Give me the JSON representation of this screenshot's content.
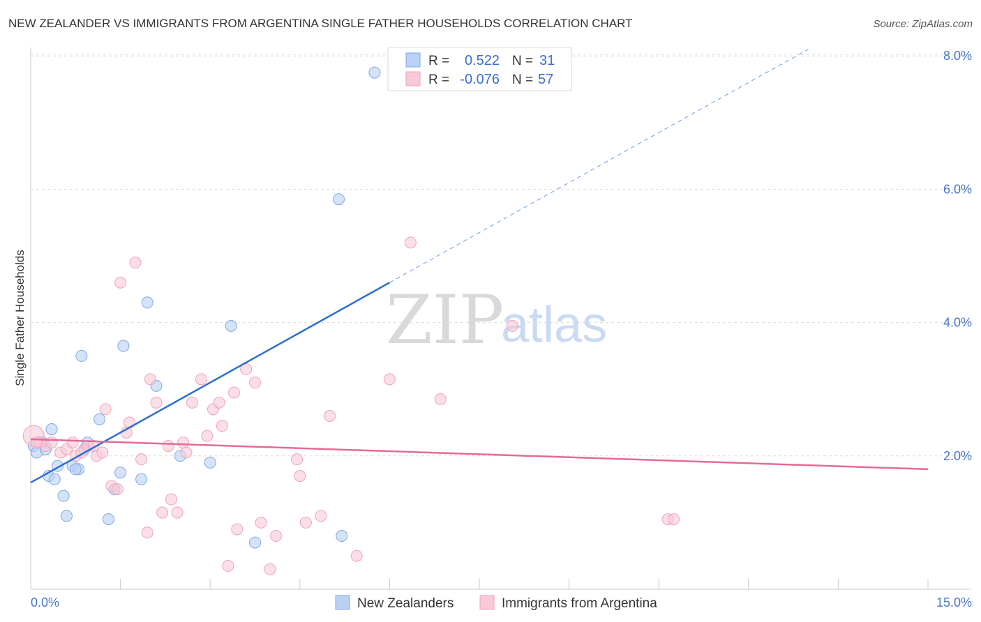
{
  "chart_data": {
    "type": "scatter",
    "title": "NEW ZEALANDER VS IMMIGRANTS FROM ARGENTINA SINGLE FATHER HOUSEHOLDS CORRELATION CHART",
    "source": "Source: ZipAtlas.com",
    "ylabel": "Single Father Households",
    "xlim": [
      0,
      15
    ],
    "ylim": [
      0,
      8.5
    ],
    "x_tick_labels": [
      "0.0%",
      "15.0%"
    ],
    "y_ticks": [
      2,
      4,
      6,
      8
    ],
    "y_tick_labels": [
      "2.0%",
      "4.0%",
      "6.0%",
      "8.0%"
    ],
    "grid": true,
    "watermark": {
      "zip": "ZIP",
      "atlas": "atlas"
    },
    "legend": {
      "placement": "top-center",
      "rows": [
        {
          "r_label": "R =",
          "r_value": "0.522",
          "n_label": "N =",
          "n_value": "31"
        },
        {
          "r_label": "R =",
          "r_value": "-0.076",
          "n_label": "N =",
          "n_value": "57"
        }
      ]
    },
    "series": [
      {
        "name": "New Zealanders",
        "color": "#7fa8e6",
        "fill": "#b9d1f3",
        "trend_color": "#2c6fd0",
        "trend": {
          "x0": 0.0,
          "y0": 1.6,
          "x1": 6.0,
          "y1": 4.6,
          "dashed_to_x": 13.0,
          "dashed_to_y": 8.1
        },
        "points": [
          [
            0.05,
            2.15
          ],
          [
            0.1,
            2.05
          ],
          [
            0.2,
            2.2
          ],
          [
            0.25,
            2.1
          ],
          [
            0.35,
            2.4
          ],
          [
            0.3,
            1.7
          ],
          [
            0.45,
            1.85
          ],
          [
            0.4,
            1.65
          ],
          [
            0.55,
            1.4
          ],
          [
            0.6,
            1.1
          ],
          [
            0.7,
            1.85
          ],
          [
            0.8,
            1.8
          ],
          [
            0.75,
            1.8
          ],
          [
            0.85,
            3.5
          ],
          [
            0.95,
            2.2
          ],
          [
            0.9,
            2.1
          ],
          [
            1.15,
            2.55
          ],
          [
            1.3,
            1.05
          ],
          [
            1.4,
            1.5
          ],
          [
            1.55,
            3.65
          ],
          [
            1.5,
            1.75
          ],
          [
            1.85,
            1.65
          ],
          [
            1.95,
            4.3
          ],
          [
            2.1,
            3.05
          ],
          [
            2.5,
            2.0
          ],
          [
            3.0,
            1.9
          ],
          [
            3.35,
            3.95
          ],
          [
            3.75,
            0.7
          ],
          [
            5.15,
            5.85
          ],
          [
            5.2,
            0.8
          ],
          [
            5.75,
            7.75
          ]
        ]
      },
      {
        "name": "Immigrants from Argentina",
        "color": "#f0a2bb",
        "fill": "#f8c9d7",
        "trend_color": "#e56a98",
        "trend": {
          "x0": 0.0,
          "y0": 2.25,
          "x1": 15.0,
          "y1": 1.8
        },
        "points": [
          [
            0.05,
            2.3
          ],
          [
            0.15,
            2.2
          ],
          [
            0.25,
            2.15
          ],
          [
            0.35,
            2.2
          ],
          [
            0.5,
            2.05
          ],
          [
            0.6,
            2.1
          ],
          [
            0.7,
            2.2
          ],
          [
            0.75,
            2.0
          ],
          [
            0.85,
            2.05
          ],
          [
            0.95,
            2.15
          ],
          [
            1.05,
            2.15
          ],
          [
            1.1,
            2.0
          ],
          [
            1.2,
            2.05
          ],
          [
            1.25,
            2.7
          ],
          [
            1.35,
            1.55
          ],
          [
            1.45,
            1.5
          ],
          [
            1.5,
            4.6
          ],
          [
            1.6,
            2.35
          ],
          [
            1.65,
            2.5
          ],
          [
            1.75,
            4.9
          ],
          [
            1.85,
            1.95
          ],
          [
            1.95,
            0.85
          ],
          [
            2.0,
            3.15
          ],
          [
            2.1,
            2.8
          ],
          [
            2.2,
            1.15
          ],
          [
            2.3,
            2.15
          ],
          [
            2.35,
            1.35
          ],
          [
            2.45,
            1.15
          ],
          [
            2.55,
            2.2
          ],
          [
            2.6,
            2.05
          ],
          [
            2.7,
            2.8
          ],
          [
            2.85,
            3.15
          ],
          [
            2.95,
            2.3
          ],
          [
            3.05,
            2.7
          ],
          [
            3.15,
            2.8
          ],
          [
            3.2,
            2.45
          ],
          [
            3.3,
            0.35
          ],
          [
            3.4,
            2.95
          ],
          [
            3.45,
            0.9
          ],
          [
            3.6,
            3.3
          ],
          [
            3.75,
            3.1
          ],
          [
            3.85,
            1.0
          ],
          [
            4.0,
            0.3
          ],
          [
            4.1,
            0.8
          ],
          [
            4.45,
            1.95
          ],
          [
            4.5,
            1.7
          ],
          [
            4.6,
            1.0
          ],
          [
            4.85,
            1.1
          ],
          [
            5.0,
            2.6
          ],
          [
            5.45,
            0.5
          ],
          [
            6.0,
            3.15
          ],
          [
            6.35,
            5.2
          ],
          [
            6.85,
            2.85
          ],
          [
            8.05,
            3.95
          ],
          [
            10.65,
            1.05
          ],
          [
            10.75,
            1.05
          ],
          [
            0.1,
            2.2
          ]
        ]
      }
    ]
  }
}
